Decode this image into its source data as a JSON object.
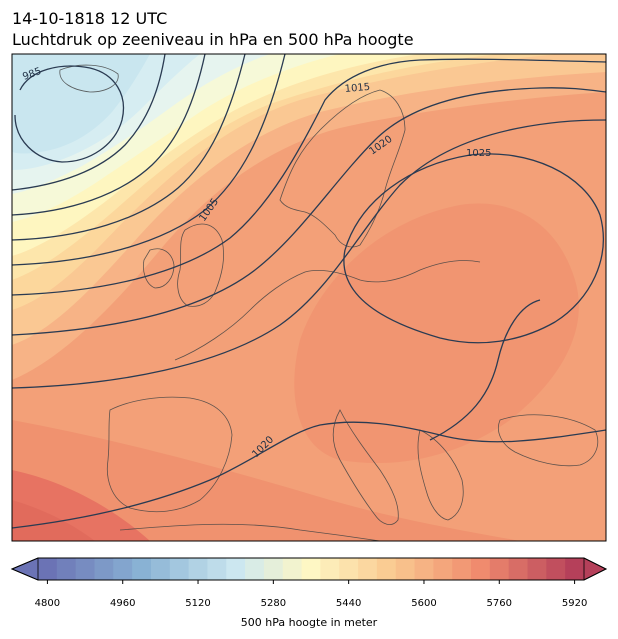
{
  "header": {
    "datetime": "14-10-1818 12 UTC",
    "subtitle": "Luchtdruk op zeeniveau in hPa en 500 hPa hoogte"
  },
  "map": {
    "region": "Europe",
    "isobar_labels": [
      "985",
      "1015",
      "1020",
      "1025",
      "1005",
      "1020"
    ],
    "colors": {
      "low": "#c9e6ef",
      "mid": "#fdeaa8",
      "high": "#f19370",
      "isobar": "#2a3b52",
      "coast": "#444444"
    }
  },
  "colorbar": {
    "label": "500 hPa hoogte in meter",
    "ticks": [
      "4800",
      "4960",
      "5120",
      "5280",
      "5440",
      "5600",
      "5760",
      "5920"
    ],
    "min": 4800,
    "max": 5960,
    "step": 40
  }
}
